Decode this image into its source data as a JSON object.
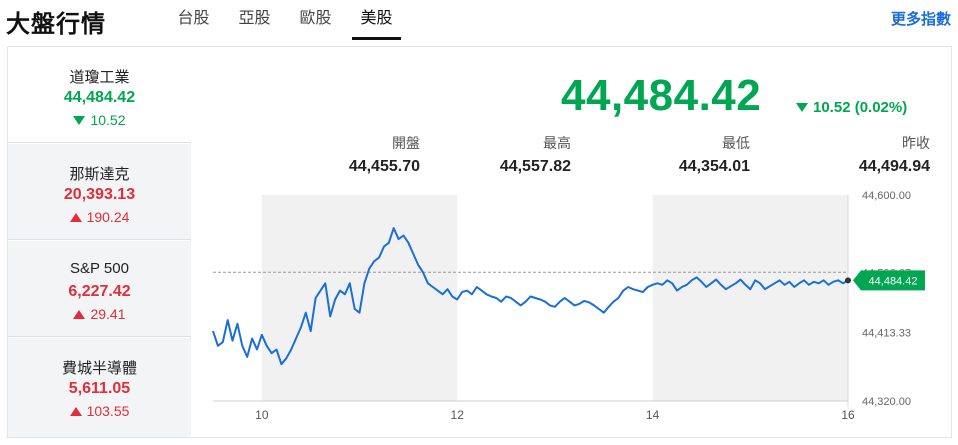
{
  "header": {
    "title": "大盤行情",
    "tabs": [
      {
        "label": "台股",
        "active": false
      },
      {
        "label": "亞股",
        "active": false
      },
      {
        "label": "歐股",
        "active": false
      },
      {
        "label": "美股",
        "active": true
      }
    ],
    "more_link": "更多指數"
  },
  "sidebar": {
    "items": [
      {
        "name": "道瓊工業",
        "price": "44,484.42",
        "change": "10.52",
        "direction": "down",
        "active": true
      },
      {
        "name": "那斯達克",
        "price": "20,393.13",
        "change": "190.24",
        "direction": "up",
        "active": false
      },
      {
        "name": "S&P 500",
        "price": "6,227.42",
        "change": "29.41",
        "direction": "up",
        "active": false
      },
      {
        "name": "費城半導體",
        "price": "5,611.05",
        "change": "103.55",
        "direction": "up",
        "active": false
      }
    ]
  },
  "quote": {
    "price": "44,484.42",
    "change": "10.52 (0.02%)",
    "direction": "down",
    "stats": [
      {
        "label": "開盤",
        "value": "44,455.70"
      },
      {
        "label": "最高",
        "value": "44,557.82"
      },
      {
        "label": "最低",
        "value": "44,354.01"
      },
      {
        "label": "昨收",
        "value": "44,494.94"
      }
    ]
  },
  "colors": {
    "up": "#e22d3a",
    "down": "#00a651",
    "line": "#1a6ed8",
    "shade": "#f1f1f1",
    "link": "#1a6ed8"
  },
  "chart_data": {
    "type": "line",
    "ylim": [
      44320,
      44600
    ],
    "y_ticks": [
      "44,600.00",
      "44,413.33",
      "44,320.00"
    ],
    "x_range": [
      9.5,
      16
    ],
    "x_ticks": [
      {
        "x": 10,
        "label": "10"
      },
      {
        "x": 12,
        "label": "12"
      },
      {
        "x": 14,
        "label": "14"
      },
      {
        "x": 16,
        "label": "16"
      }
    ],
    "shaded_hours": [
      [
        10,
        12
      ],
      [
        14,
        16
      ]
    ],
    "prev_close": 44494.94,
    "prev_close_label": "44,506.67",
    "current_label": "44,484.42",
    "series": [
      {
        "x": [
          9.5,
          9.55,
          9.6,
          9.65,
          9.7,
          9.75,
          9.8,
          9.85,
          9.9,
          9.95,
          10.0,
          10.05,
          10.1,
          10.15,
          10.2,
          10.25,
          10.3,
          10.35,
          10.4,
          10.45,
          10.5,
          10.55,
          10.6,
          10.65,
          10.7,
          10.75,
          10.8,
          10.85,
          10.9,
          10.95,
          11.0,
          11.05,
          11.1,
          11.15,
          11.2,
          11.25,
          11.3,
          11.35,
          11.4,
          11.45,
          11.5,
          11.55,
          11.6,
          11.65,
          11.7,
          11.75,
          11.8,
          11.85,
          11.9,
          11.95,
          12.0,
          12.05,
          12.1,
          12.15,
          12.2,
          12.25,
          12.3,
          12.35,
          12.4,
          12.45,
          12.5,
          12.55,
          12.6,
          12.65,
          12.7,
          12.75,
          12.8,
          12.85,
          12.9,
          12.95,
          13.0,
          13.05,
          13.1,
          13.15,
          13.2,
          13.25,
          13.3,
          13.35,
          13.4,
          13.45,
          13.5,
          13.55,
          13.6,
          13.65,
          13.7,
          13.75,
          13.8,
          13.85,
          13.9,
          13.95,
          14.0,
          14.05,
          14.1,
          14.15,
          14.2,
          14.25,
          14.3,
          14.35,
          14.4,
          14.45,
          14.5,
          14.55,
          14.6,
          14.65,
          14.7,
          14.75,
          14.8,
          14.85,
          14.9,
          14.95,
          15.0,
          15.05,
          15.1,
          15.15,
          15.2,
          15.25,
          15.3,
          15.35,
          15.4,
          15.45,
          15.5,
          15.55,
          15.6,
          15.65,
          15.7,
          15.75,
          15.8,
          15.85,
          15.9,
          15.95,
          16.0
        ],
        "y": [
          44415,
          44395,
          44400,
          44430,
          44402,
          44425,
          44395,
          44380,
          44405,
          44390,
          44410,
          44395,
          44385,
          44390,
          44370,
          44378,
          44390,
          44405,
          44420,
          44440,
          44415,
          44460,
          44470,
          44480,
          44435,
          44458,
          44470,
          44465,
          44480,
          44445,
          44440,
          44480,
          44500,
          44510,
          44515,
          44530,
          44535,
          44555,
          44540,
          44545,
          44535,
          44520,
          44505,
          44495,
          44480,
          44475,
          44470,
          44465,
          44472,
          44462,
          44458,
          44468,
          44470,
          44465,
          44475,
          44470,
          44465,
          44462,
          44460,
          44455,
          44462,
          44460,
          44455,
          44450,
          44455,
          44462,
          44460,
          44458,
          44455,
          44450,
          44448,
          44455,
          44460,
          44455,
          44450,
          44452,
          44456,
          44454,
          44450,
          44445,
          44440,
          44448,
          44455,
          44460,
          44470,
          44475,
          44472,
          44470,
          44468,
          44475,
          44478,
          44480,
          44478,
          44484,
          44480,
          44470,
          44475,
          44478,
          44484,
          44488,
          44482,
          44475,
          44480,
          44485,
          44478,
          44472,
          44476,
          44480,
          44485,
          44478,
          44472,
          44484,
          44480,
          44472,
          44476,
          44480,
          44484,
          44478,
          44482,
          44475,
          44480,
          44484,
          44478,
          44482,
          44480,
          44484,
          44478,
          44482,
          44484,
          44480,
          44484
        ]
      }
    ]
  }
}
